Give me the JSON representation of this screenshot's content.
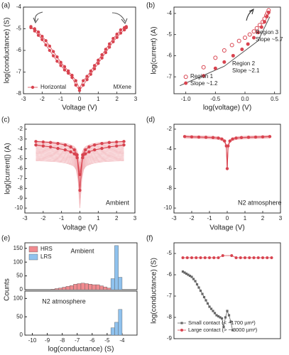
{
  "figure": {
    "background": "#ffffff",
    "accent": "#d8434f",
    "light_accent": "#f2b6bb",
    "lrs_color": "#8fc2ee",
    "gray": "#666666"
  },
  "chart_data": [
    {
      "panel": "(a)",
      "type": "line",
      "xlabel": "Voltage (V)",
      "ylabel": "log(conductance) (S)",
      "xlim": [
        -3,
        3
      ],
      "ylim": [
        -8,
        -4
      ],
      "xticks": [
        -3,
        -2,
        -1,
        0,
        1,
        2,
        3
      ],
      "yticks": [
        -8,
        -7,
        -6,
        -5,
        -4
      ],
      "legend": {
        "entries": [
          "Horizontal"
        ],
        "placement": "bottom-left"
      },
      "annotations": [
        "MXene"
      ],
      "series": [
        {
          "name": "Horizontal",
          "color": "#d8434f",
          "marker": "circle",
          "x": [
            -2.6,
            -2.4,
            -2.2,
            -2.0,
            -1.8,
            -1.6,
            -1.4,
            -1.2,
            -1.0,
            -0.8,
            -0.6,
            -0.4,
            -0.2,
            0.0,
            0.2,
            0.4,
            0.6,
            0.8,
            1.0,
            1.2,
            1.4,
            1.6,
            1.8,
            2.0,
            2.2,
            2.4,
            2.5
          ],
          "y": [
            -4.95,
            -5.0,
            -5.15,
            -5.35,
            -5.55,
            -5.8,
            -6.05,
            -6.3,
            -6.55,
            -6.75,
            -6.95,
            -7.15,
            -7.4,
            -7.75,
            -7.4,
            -7.2,
            -6.95,
            -6.7,
            -6.45,
            -6.2,
            -5.95,
            -5.7,
            -5.45,
            -5.25,
            -5.05,
            -4.95,
            -4.9
          ]
        },
        {
          "name": "",
          "color": "#d8434f",
          "marker": "circle",
          "x": [
            -2.6,
            -2.4,
            -2.2,
            -2.0,
            -1.8,
            -1.6,
            -1.4,
            -1.2,
            -1.0,
            -0.8,
            -0.6,
            -0.4,
            -0.2,
            0.0,
            0.2,
            0.4,
            0.6,
            0.8,
            1.0,
            1.2,
            1.4,
            1.6,
            1.8,
            2.0,
            2.2,
            2.4,
            2.5
          ],
          "y": [
            -4.9,
            -5.1,
            -5.3,
            -5.5,
            -5.75,
            -6.0,
            -6.25,
            -6.5,
            -6.7,
            -6.9,
            -7.05,
            -7.25,
            -7.6,
            -7.85,
            -7.6,
            -7.35,
            -7.1,
            -6.85,
            -6.6,
            -6.35,
            -6.1,
            -5.85,
            -5.6,
            -5.4,
            -5.2,
            -5.05,
            -4.95
          ]
        }
      ]
    },
    {
      "panel": "(b)",
      "type": "scatter",
      "xlabel": "log(voltage) (V)",
      "ylabel": "log(current) (A)",
      "xlim": [
        -1.2,
        0.6
      ],
      "ylim": [
        -7.8,
        -3.7
      ],
      "xticks": [
        -1.0,
        -0.5,
        0.0,
        0.5
      ],
      "xtick_labels": [
        "-1.0",
        "-0.5",
        "0.0",
        "0.5"
      ],
      "yticks": [
        -7,
        -6,
        -5,
        -4
      ],
      "annotations": [
        "Region 1",
        "Slope ~1.2",
        "Region 2",
        "Slope ~2.1",
        "Region 3",
        "Slope ~5.7"
      ],
      "series": [
        {
          "name": "",
          "color": "#d8434f",
          "marker": "open-circle",
          "x": [
            -1.0,
            -0.7,
            -0.5,
            -0.35,
            -0.22,
            -0.1,
            0.0,
            0.08,
            0.15,
            0.2,
            0.25,
            0.3,
            0.33,
            0.36,
            0.38,
            0.4
          ],
          "y": [
            -7.0,
            -6.55,
            -6.1,
            -5.75,
            -5.5,
            -5.3,
            -5.15,
            -5.0,
            -4.85,
            -4.7,
            -4.55,
            -4.4,
            -4.25,
            -4.1,
            -3.98,
            -3.85
          ]
        },
        {
          "name": "",
          "color": "#d8434f",
          "marker": "circle",
          "x": [
            -1.0,
            -0.7,
            -0.5,
            -0.35,
            -0.2,
            -0.05,
            0.05,
            0.15,
            0.22,
            0.28,
            0.33,
            0.37,
            0.4
          ],
          "y": [
            -7.3,
            -6.95,
            -6.6,
            -6.3,
            -6.0,
            -5.7,
            -5.45,
            -5.15,
            -4.9,
            -4.65,
            -4.4,
            -4.15,
            -3.95
          ]
        }
      ],
      "fit_lines": [
        {
          "x": [
            -1.1,
            -0.35
          ],
          "y": [
            -7.42,
            -6.5
          ]
        },
        {
          "x": [
            -0.35,
            0.22
          ],
          "y": [
            -6.5,
            -5.3
          ]
        },
        {
          "x": [
            0.22,
            0.42
          ],
          "y": [
            -5.3,
            -4.16
          ]
        }
      ]
    },
    {
      "panel": "(c)",
      "type": "line",
      "xlabel": "Voltage (V)",
      "ylabel": "log(|current|) (A)",
      "xlim": [
        -3,
        3
      ],
      "ylim": [
        -10.5,
        -1.5
      ],
      "xticks": [
        -3,
        -2,
        -1,
        0,
        1,
        2,
        3
      ],
      "yticks": [
        -10,
        -9,
        -8,
        -7,
        -6,
        -5,
        -4,
        -3,
        -2
      ],
      "annotations": [
        "Ambient"
      ],
      "series": [
        {
          "name": "",
          "color": "#d8434f",
          "marker": "circle",
          "x": [
            -2.4,
            -2.0,
            -1.6,
            -1.2,
            -0.8,
            -0.5,
            -0.3,
            -0.15,
            0.0,
            0.15,
            0.3,
            0.5,
            0.8,
            1.2,
            1.6,
            2.0,
            2.4
          ],
          "y": [
            -3.25,
            -3.3,
            -3.35,
            -3.45,
            -3.6,
            -3.8,
            -4.1,
            -4.6,
            -8.2,
            -4.6,
            -4.1,
            -3.8,
            -3.6,
            -3.45,
            -3.35,
            -3.3,
            -3.25
          ]
        },
        {
          "name": "",
          "color": "#d8434f",
          "marker": "circle",
          "x": [
            -2.4,
            -2.0,
            -1.6,
            -1.2,
            -0.8,
            -0.5,
            -0.3,
            -0.15,
            0.0,
            0.15,
            0.3,
            0.5,
            0.8,
            1.2,
            1.6,
            2.0,
            2.4
          ],
          "y": [
            -3.6,
            -3.7,
            -3.8,
            -3.95,
            -4.1,
            -4.3,
            -4.5,
            -4.9,
            -6.6,
            -4.9,
            -4.5,
            -4.3,
            -4.1,
            -3.95,
            -3.8,
            -3.7,
            -3.6
          ]
        }
      ]
    },
    {
      "panel": "(d)",
      "type": "line",
      "xlabel": "Voltage (V)",
      "ylabel": "",
      "xlim": [
        -3,
        3
      ],
      "ylim": [
        -10.5,
        -1.5
      ],
      "xticks": [
        -3,
        -2,
        -1,
        0,
        1,
        2,
        3
      ],
      "yticks": [
        -10,
        -8,
        -6,
        -4,
        -2
      ],
      "annotations": [
        "N2 atmosphere"
      ],
      "series": [
        {
          "name": "",
          "color": "#d8434f",
          "marker": "circle",
          "x": [
            -2.4,
            -2.0,
            -1.6,
            -1.2,
            -0.8,
            -0.5,
            -0.3,
            -0.15,
            -0.05,
            0.0,
            0.05,
            0.15,
            0.3,
            0.5,
            0.8,
            1.2,
            1.6,
            2.0,
            2.4
          ],
          "y": [
            -2.75,
            -2.78,
            -2.8,
            -2.82,
            -2.85,
            -2.9,
            -3.0,
            -3.2,
            -3.7,
            -6.0,
            -3.7,
            -3.2,
            -3.0,
            -2.9,
            -2.85,
            -2.82,
            -2.8,
            -2.78,
            -2.75
          ]
        }
      ]
    },
    {
      "panel": "(e)",
      "type": "bar",
      "xlabel": "log(conductance) (S)",
      "ylabel": "Counts",
      "xlim": [
        -10.5,
        -3
      ],
      "xticks": [
        -10,
        -9,
        -8,
        -7,
        -6,
        -5,
        -4
      ],
      "yticks_top": [
        0,
        50,
        100,
        150
      ],
      "yticks_bottom": [
        0,
        50,
        100
      ],
      "annotations": [
        "Ambient",
        "N2 atmosphere"
      ],
      "legend": {
        "entries": [
          "HRS",
          "LRS"
        ],
        "placement": "top-left"
      },
      "bin_width": 0.25,
      "top": {
        "series": [
          {
            "name": "HRS",
            "color": "#f08a8f",
            "bins": [
              -8.625,
              -8.375,
              -8.125,
              -7.875,
              -7.625,
              -7.375,
              -7.125,
              -6.875,
              -6.625,
              -6.375,
              -6.125,
              -5.875,
              -5.625,
              -5.375,
              -5.125,
              -4.875
            ],
            "values": [
              2,
              4,
              6,
              9,
              12,
              15,
              20,
              22,
              24,
              22,
              20,
              18,
              18,
              14,
              10,
              6
            ]
          },
          {
            "name": "LRS",
            "color": "#8fc2ee",
            "bins": [
              -4.625,
              -4.375,
              -4.125
            ],
            "values": [
              40,
              160,
              45
            ]
          }
        ]
      },
      "bottom": {
        "series": [
          {
            "name": "LRS",
            "color": "#8fc2ee",
            "bins": [
              -4.625,
              -4.375,
              -4.125
            ],
            "values": [
              20,
              35,
              70
            ]
          }
        ]
      }
    },
    {
      "panel": "(f)",
      "type": "line",
      "xlabel": "",
      "ylabel": "log(conductance) (S)",
      "xlim": [
        -3,
        3
      ],
      "ylim": [
        -9,
        -4.5
      ],
      "xticks": [
        -3,
        -2,
        -1,
        0,
        1,
        2,
        3
      ],
      "yticks": [
        -9,
        -8,
        -7,
        -6,
        -5
      ],
      "legend": {
        "entries": [
          "Small contact (< ~1700 µm²)",
          "Large contact (> ~ 3000 µm²)"
        ],
        "placement": "bottom-left"
      },
      "series": [
        {
          "name": "Small contact (< ~1700 µm²)",
          "color": "#666666",
          "marker": "square",
          "x": [
            -2.5,
            -2.4,
            -2.3,
            -2.2,
            -2.1,
            -2.0,
            -1.9,
            -1.8,
            -1.7,
            -1.6,
            -1.5,
            -1.4,
            -1.3,
            -1.2,
            -1.1,
            -1.0,
            -0.9,
            -0.8,
            -0.7,
            -0.6,
            -0.5,
            -0.4,
            -0.3,
            -0.2,
            -0.1,
            0.0,
            0.1,
            0.2,
            0.3
          ],
          "y": [
            -5.85,
            -5.9,
            -5.95,
            -6.0,
            -6.05,
            -6.1,
            -6.2,
            -6.3,
            -6.45,
            -6.6,
            -6.75,
            -6.9,
            -7.05,
            -7.2,
            -7.35,
            -7.5,
            -7.6,
            -7.7,
            -7.8,
            -7.9,
            -7.95,
            -8.0,
            -8.05,
            -8.45,
            -8.0,
            -7.7,
            -7.9,
            -8.2,
            -8.6
          ]
        },
        {
          "name": "Large contact (> ~ 3000 µm²)",
          "color": "#d8434f",
          "marker": "circle",
          "x": [
            -2.5,
            -2.25,
            -2.0,
            -1.75,
            -1.5,
            -1.25,
            -1.0,
            -0.75,
            -0.5,
            -0.25,
            0.25,
            0.5,
            0.75,
            1.0,
            1.25,
            1.5,
            1.75,
            2.0,
            2.25,
            2.5
          ],
          "y": [
            -5.2,
            -5.2,
            -5.2,
            -5.2,
            -5.2,
            -5.2,
            -5.2,
            -5.2,
            -5.2,
            -5.1,
            -5.1,
            -5.2,
            -5.2,
            -5.2,
            -5.2,
            -5.2,
            -5.2,
            -5.2,
            -5.2,
            -5.2
          ]
        }
      ]
    }
  ]
}
